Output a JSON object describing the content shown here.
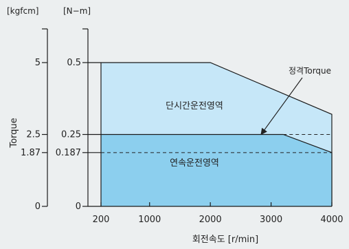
{
  "chart_data": {
    "type": "area",
    "xlabel": "회전속도 [r/min]",
    "ylabel": "Torque",
    "y_units": [
      "[kgfcm]",
      "[N−m]"
    ],
    "x_ticks": [
      200,
      1000,
      2000,
      3000,
      4000
    ],
    "y_ticks": [
      {
        "nm": "0.5",
        "kgf": "5",
        "value": 0.5
      },
      {
        "nm": "0.25",
        "kgf": "2.5",
        "value": 0.25
      },
      {
        "nm": "0.187",
        "kgf": "1.87",
        "value": 0.187
      },
      {
        "nm": "0",
        "kgf": "0",
        "value": 0
      }
    ],
    "xlim": [
      200,
      4000
    ],
    "ylim": [
      0,
      0.5
    ],
    "regions": [
      {
        "name": "단시간운전영역",
        "color": "#c6e7f8",
        "boundary": [
          [
            200,
            0.5
          ],
          [
            2000,
            0.5
          ],
          [
            4000,
            0.32
          ],
          [
            4000,
            0
          ]
        ]
      },
      {
        "name": "연속운전영역",
        "color": "#8ccfee",
        "boundary": [
          [
            200,
            0.25
          ],
          [
            3200,
            0.25
          ],
          [
            4000,
            0.187
          ],
          [
            4000,
            0
          ]
        ]
      }
    ],
    "rated_torque": {
      "label": "정격Torque",
      "value": 0.25
    },
    "reference_lines": [
      {
        "value": 0.25,
        "x_from": 3200,
        "x_to": 4000
      },
      {
        "value": 0.187,
        "x_from": 200,
        "x_to": 4000
      }
    ]
  }
}
